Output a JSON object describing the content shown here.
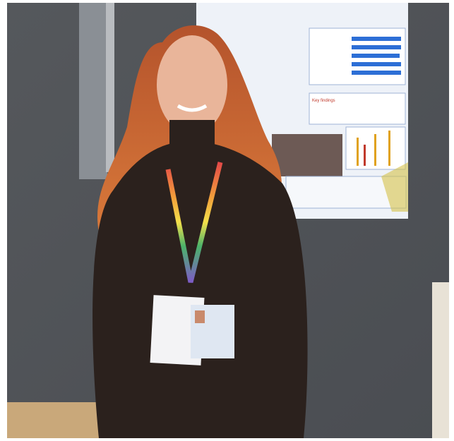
{
  "poster": {
    "heading": "Key findings"
  }
}
